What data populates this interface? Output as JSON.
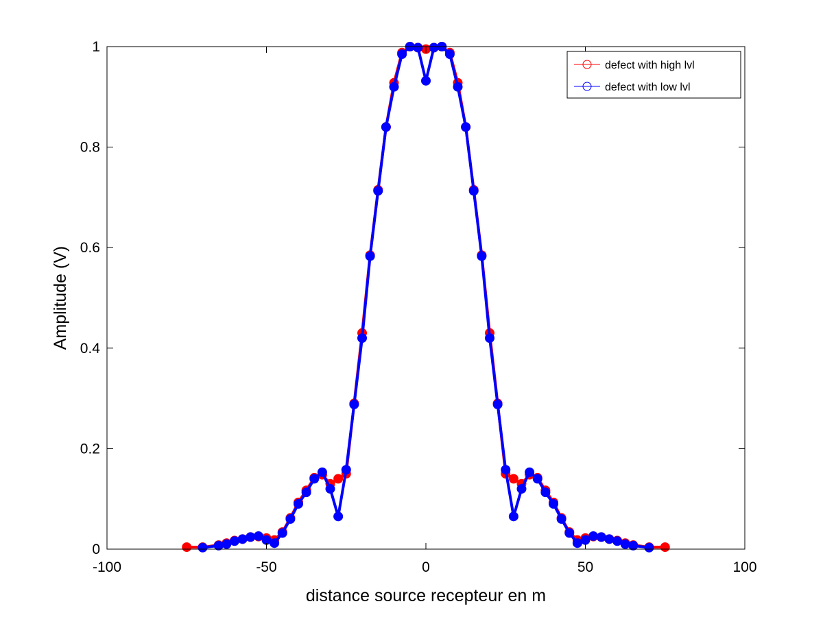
{
  "chart_data": {
    "type": "line",
    "title": "",
    "xlabel": "distance source recepteur en m",
    "ylabel": "Amplitude (V)",
    "xlim": [
      -100,
      100
    ],
    "ylim": [
      0,
      1
    ],
    "xticks": [
      -100,
      -50,
      0,
      50,
      100
    ],
    "xtick_labels": [
      "-100",
      "-50",
      "0",
      "50",
      "100"
    ],
    "yticks": [
      0,
      0.2,
      0.4,
      0.6,
      0.8,
      1
    ],
    "ytick_labels": [
      "0",
      "0.2",
      "0.4",
      "0.6",
      "0.8",
      "1"
    ],
    "grid": false,
    "legend_position": "top-right",
    "series": [
      {
        "name": "defect with high lvl",
        "color": "#ff0000",
        "marker": "circle",
        "x": [
          -75,
          -70,
          -65,
          -62.5,
          -60,
          -57.5,
          -55,
          -52.5,
          -50,
          -47.5,
          -45,
          -42.5,
          -40,
          -37.5,
          -35,
          -32.5,
          -30,
          -27.5,
          -25,
          -22.5,
          -20,
          -17.5,
          -15,
          -12.5,
          -10,
          -7.5,
          -5,
          -2.5,
          0,
          2.5,
          5,
          7.5,
          10,
          12.5,
          15,
          17.5,
          20,
          22.5,
          25,
          27.5,
          30,
          32.5,
          35,
          37.5,
          40,
          42.5,
          45,
          47.5,
          50,
          52.5,
          55,
          57.5,
          60,
          62.5,
          65,
          70,
          75
        ],
        "y": [
          0.004,
          0.004,
          0.008,
          0.012,
          0.017,
          0.02,
          0.024,
          0.025,
          0.022,
          0.018,
          0.034,
          0.062,
          0.093,
          0.117,
          0.142,
          0.148,
          0.13,
          0.14,
          0.15,
          0.29,
          0.43,
          0.585,
          0.715,
          0.84,
          0.928,
          0.988,
          1.0,
          0.998,
          0.995,
          0.998,
          1.0,
          0.988,
          0.928,
          0.84,
          0.715,
          0.585,
          0.43,
          0.29,
          0.15,
          0.14,
          0.13,
          0.148,
          0.142,
          0.117,
          0.093,
          0.062,
          0.034,
          0.018,
          0.022,
          0.025,
          0.024,
          0.02,
          0.017,
          0.012,
          0.008,
          0.004,
          0.004
        ]
      },
      {
        "name": "defect with low lvl",
        "color": "#0000ff",
        "marker": "circle",
        "x": [
          -70,
          -65,
          -62.5,
          -60,
          -57.5,
          -55,
          -52.5,
          -50,
          -47.5,
          -45,
          -42.5,
          -40,
          -37.5,
          -35,
          -32.5,
          -30,
          -27.5,
          -25,
          -22.5,
          -20,
          -17.5,
          -15,
          -12.5,
          -10,
          -7.5,
          -5,
          -2.5,
          0,
          2.5,
          5,
          7.5,
          10,
          12.5,
          15,
          17.5,
          20,
          22.5,
          25,
          27.5,
          30,
          32.5,
          35,
          37.5,
          40,
          42.5,
          45,
          47.5,
          50,
          52.5,
          55,
          57.5,
          60,
          62.5,
          65,
          70
        ],
        "y": [
          0.003,
          0.007,
          0.01,
          0.016,
          0.02,
          0.024,
          0.026,
          0.018,
          0.012,
          0.032,
          0.06,
          0.09,
          0.113,
          0.14,
          0.153,
          0.12,
          0.065,
          0.158,
          0.288,
          0.42,
          0.583,
          0.713,
          0.84,
          0.92,
          0.985,
          1.0,
          0.998,
          0.932,
          0.998,
          1.0,
          0.985,
          0.92,
          0.84,
          0.713,
          0.583,
          0.42,
          0.288,
          0.158,
          0.065,
          0.12,
          0.153,
          0.14,
          0.113,
          0.09,
          0.06,
          0.032,
          0.012,
          0.018,
          0.026,
          0.024,
          0.02,
          0.016,
          0.01,
          0.007,
          0.003
        ]
      }
    ]
  }
}
